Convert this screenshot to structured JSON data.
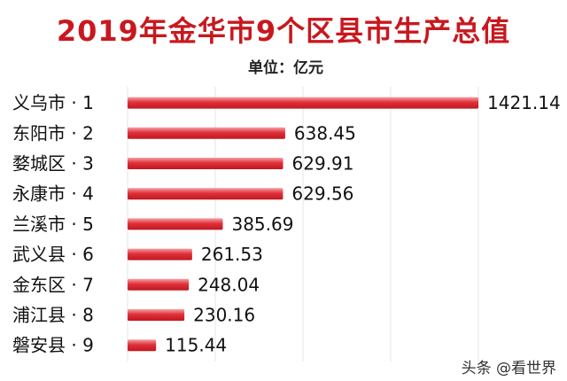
{
  "chart_data": {
    "type": "bar",
    "orientation": "horizontal",
    "title": "2019年金华市9个区县市生产总值",
    "subtitle": "单位：亿元",
    "categories": [
      "义乌市 · 1",
      "东阳市 · 2",
      "婺城区 · 3",
      "永康市 · 4",
      "兰溪市 · 5",
      "武义县 · 6",
      "金东区 · 7",
      "浦江县 · 8",
      "磐安县 · 9"
    ],
    "values": [
      1421.14,
      638.45,
      629.91,
      629.56,
      385.69,
      261.53,
      248.04,
      230.16,
      115.44
    ],
    "value_labels": [
      "1421.14",
      "638.45",
      "629.91",
      "629.56",
      "385.69",
      "261.53",
      "248.04",
      "230.16",
      "115.44"
    ],
    "bar_color": "#d8202a",
    "grid": true,
    "legend": "none"
  },
  "watermark": "头条 @看世界"
}
